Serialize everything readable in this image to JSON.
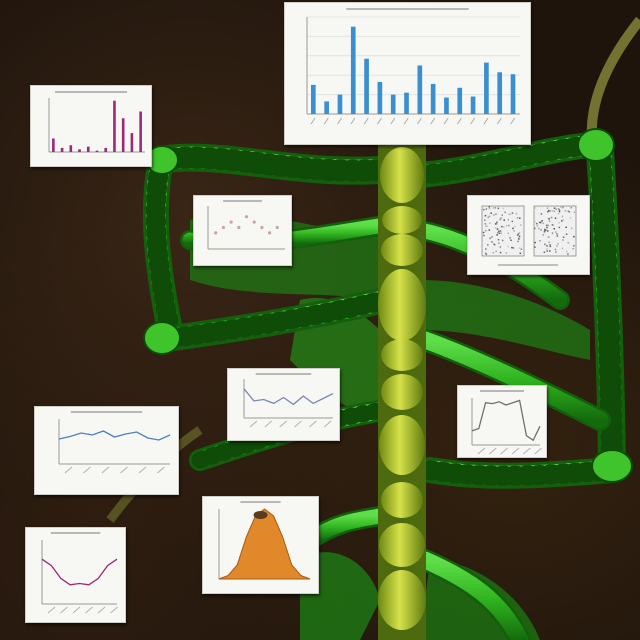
{
  "scene": {
    "background": "#1e140c",
    "spine_color": "#c8d83a",
    "vine_color": "#2fb31f",
    "vine_highlight": "#5fe04a"
  },
  "chart_data": [
    {
      "type": "bar",
      "series": [
        {
          "values": [
            30,
            13,
            20,
            90,
            57,
            33,
            20,
            22,
            50,
            31,
            17,
            27,
            18,
            53,
            43,
            41
          ],
          "color": "#3a8fd0"
        }
      ],
      "categories": [
        "",
        "",
        "",
        "",
        "",
        "",
        "",
        "",
        "",
        "",
        "",
        "",
        "",
        "",
        "",
        ""
      ]
    },
    {
      "type": "bar",
      "series": [
        {
          "values": [
            10,
            3,
            5,
            2,
            4,
            1,
            3,
            38,
            25,
            14,
            30
          ],
          "color": "#a0287a"
        }
      ]
    },
    {
      "type": "scatter",
      "series": [
        {
          "values": [
            [
              1,
              3
            ],
            [
              2,
              4
            ],
            [
              3,
              5
            ],
            [
              4,
              4
            ],
            [
              5,
              6
            ],
            [
              6,
              5
            ],
            [
              7,
              4
            ],
            [
              8,
              3
            ],
            [
              9,
              4
            ]
          ],
          "color": "#c9a6a0"
        }
      ]
    },
    {
      "type": "heatmap",
      "panels": 2
    },
    {
      "type": "line",
      "series": [
        {
          "values": [
            60,
            35,
            38,
            30,
            42,
            28,
            45,
            30,
            40,
            50
          ],
          "color": "#7a86b8"
        }
      ]
    },
    {
      "type": "line",
      "series": [
        {
          "values": [
            50,
            55,
            62,
            58,
            66,
            54,
            60,
            64,
            52,
            48,
            58
          ],
          "color": "#4e7fc0"
        }
      ]
    },
    {
      "type": "line",
      "series": [
        {
          "values": [
            30,
            35,
            90,
            88,
            92,
            85,
            90,
            95,
            20,
            10,
            40
          ],
          "color": "#707070"
        }
      ]
    },
    {
      "type": "area",
      "series": [
        {
          "values": [
            0,
            5,
            20,
            60,
            90,
            100,
            90,
            60,
            20,
            5,
            0
          ],
          "color": "#e0882a"
        }
      ]
    },
    {
      "type": "line",
      "series": [
        {
          "values": [
            70,
            60,
            40,
            30,
            32,
            30,
            40,
            60,
            70
          ],
          "color": "#a02870"
        }
      ]
    }
  ]
}
